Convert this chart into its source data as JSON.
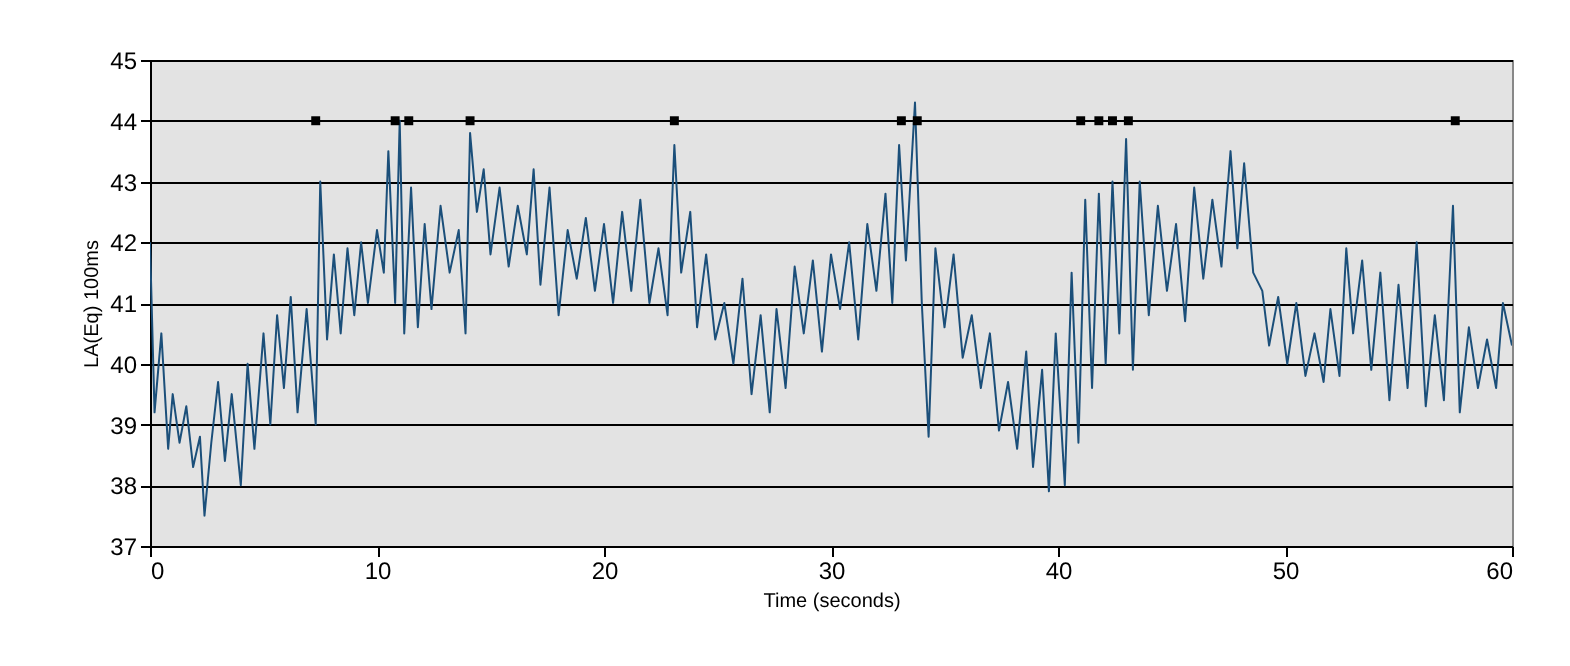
{
  "chart_data": {
    "type": "line",
    "xlabel": "Time (seconds)",
    "ylabel": "LA(Eq) 100ms",
    "xlim": [
      0,
      60
    ],
    "xticks": [
      0,
      10,
      20,
      30,
      40,
      50,
      60
    ],
    "ylim": [
      37,
      45
    ],
    "yticks": [
      37,
      38,
      39,
      40,
      41,
      42,
      43,
      44,
      45
    ],
    "grid": "y",
    "series": [
      {
        "type": "line",
        "color": "#1b4f7a",
        "x": [
          0,
          0.2,
          0.5,
          0.8,
          1.0,
          1.3,
          1.6,
          1.9,
          2.2,
          2.4,
          2.7,
          3.0,
          3.3,
          3.6,
          4.0,
          4.3,
          4.6,
          5.0,
          5.3,
          5.6,
          5.9,
          6.2,
          6.5,
          6.9,
          7.3,
          7.5,
          7.8,
          8.1,
          8.4,
          8.7,
          9.0,
          9.3,
          9.6,
          10.0,
          10.3,
          10.5,
          10.8,
          11.0,
          11.2,
          11.5,
          11.8,
          12.1,
          12.4,
          12.8,
          13.2,
          13.6,
          13.9,
          14.1,
          14.4,
          14.7,
          15.0,
          15.4,
          15.8,
          16.2,
          16.6,
          16.9,
          17.2,
          17.6,
          18.0,
          18.4,
          18.8,
          19.2,
          19.6,
          20.0,
          20.4,
          20.8,
          21.2,
          21.6,
          22.0,
          22.4,
          22.8,
          23.1,
          23.4,
          23.8,
          24.1,
          24.5,
          24.9,
          25.3,
          25.7,
          26.1,
          26.5,
          26.9,
          27.3,
          27.6,
          28.0,
          28.4,
          28.8,
          29.2,
          29.6,
          30.0,
          30.4,
          30.8,
          31.2,
          31.6,
          32.0,
          32.4,
          32.7,
          33.0,
          33.3,
          33.7,
          34.0,
          34.3,
          34.6,
          35.0,
          35.4,
          35.8,
          36.2,
          36.6,
          37.0,
          37.4,
          37.8,
          38.2,
          38.6,
          38.9,
          39.3,
          39.6,
          39.9,
          40.3,
          40.6,
          40.9,
          41.2,
          41.5,
          41.8,
          42.1,
          42.4,
          42.7,
          43.0,
          43.3,
          43.6,
          44.0,
          44.4,
          44.8,
          45.2,
          45.6,
          46.0,
          46.4,
          46.8,
          47.2,
          47.6,
          47.9,
          48.2,
          48.6,
          49.0,
          49.3,
          49.7,
          50.1,
          50.5,
          50.9,
          51.3,
          51.7,
          52.0,
          52.4,
          52.7,
          53.0,
          53.4,
          53.8,
          54.2,
          54.6,
          55.0,
          55.4,
          55.8,
          56.2,
          56.6,
          57.0,
          57.4,
          57.7,
          58.1,
          58.5,
          58.9,
          59.3,
          59.6,
          60.0
        ],
        "values": [
          42.0,
          39.2,
          40.5,
          38.6,
          39.5,
          38.7,
          39.3,
          38.3,
          38.8,
          37.5,
          38.7,
          39.7,
          38.4,
          39.5,
          38.0,
          40.0,
          38.6,
          40.5,
          39.0,
          40.8,
          39.6,
          41.1,
          39.2,
          40.9,
          39.0,
          43.0,
          40.4,
          41.8,
          40.5,
          41.9,
          40.8,
          42.0,
          41.0,
          42.2,
          41.5,
          43.5,
          41.0,
          44.0,
          40.5,
          42.9,
          40.6,
          42.3,
          40.9,
          42.6,
          41.5,
          42.2,
          40.5,
          43.8,
          42.5,
          43.2,
          41.8,
          42.9,
          41.6,
          42.6,
          41.8,
          43.2,
          41.3,
          42.9,
          40.8,
          42.2,
          41.4,
          42.4,
          41.2,
          42.3,
          41.0,
          42.5,
          41.2,
          42.7,
          41.0,
          41.9,
          40.8,
          43.6,
          41.5,
          42.5,
          40.6,
          41.8,
          40.4,
          41.0,
          40.0,
          41.4,
          39.5,
          40.8,
          39.2,
          40.9,
          39.6,
          41.6,
          40.5,
          41.7,
          40.2,
          41.8,
          40.9,
          42.0,
          40.4,
          42.3,
          41.2,
          42.8,
          41.0,
          43.6,
          41.7,
          44.3,
          41.0,
          38.8,
          41.9,
          40.6,
          41.8,
          40.1,
          40.8,
          39.6,
          40.5,
          38.9,
          39.7,
          38.6,
          40.2,
          38.3,
          39.9,
          37.9,
          40.5,
          38.0,
          41.5,
          38.7,
          42.7,
          39.6,
          42.8,
          40.0,
          43.0,
          40.5,
          43.7,
          39.9,
          43.0,
          40.8,
          42.6,
          41.2,
          42.3,
          40.7,
          42.9,
          41.4,
          42.7,
          41.6,
          43.5,
          41.9,
          43.3,
          41.5,
          41.2,
          40.3,
          41.1,
          40.0,
          41.0,
          39.8,
          40.5,
          39.7,
          40.9,
          39.8,
          41.9,
          40.5,
          41.7,
          39.9,
          41.5,
          39.4,
          41.3,
          39.6,
          42.0,
          39.3,
          40.8,
          39.4,
          42.6,
          39.2,
          40.6,
          39.6,
          40.4,
          39.6,
          41.0,
          40.3
        ]
      },
      {
        "type": "scatter",
        "color": "#000000",
        "marker": "square",
        "x": [
          7.3,
          10.8,
          11.4,
          14.1,
          23.1,
          33.1,
          33.8,
          41.0,
          41.8,
          42.4,
          43.1,
          57.5
        ],
        "values": [
          44,
          44,
          44,
          44,
          44,
          44,
          44,
          44,
          44,
          44,
          44,
          44
        ]
      }
    ]
  }
}
